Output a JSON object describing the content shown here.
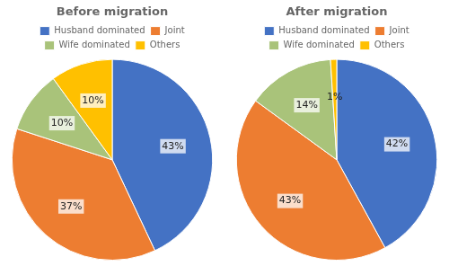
{
  "chart_data": [
    {
      "type": "pie",
      "title": "Before migration",
      "categories": [
        "Husband dominated",
        "Joint",
        "Wife dominated",
        "Others"
      ],
      "values": [
        43,
        37,
        10,
        10
      ],
      "value_labels": [
        "43%",
        "37%",
        "10%",
        "10%"
      ],
      "colors": [
        "#4472C4",
        "#ED7D31",
        "#A9C37A",
        "#FFC000"
      ],
      "data_labels": true,
      "legend": "top"
    },
    {
      "type": "pie",
      "title": "After migration",
      "categories": [
        "Husband dominated",
        "Joint",
        "Wife dominated",
        "Others"
      ],
      "values": [
        42,
        43,
        14,
        1
      ],
      "value_labels": [
        "42%",
        "43%",
        "14%",
        "1%"
      ],
      "colors": [
        "#4472C4",
        "#ED7D31",
        "#A9C37A",
        "#FFC000"
      ],
      "data_labels": true,
      "legend": "top"
    }
  ]
}
